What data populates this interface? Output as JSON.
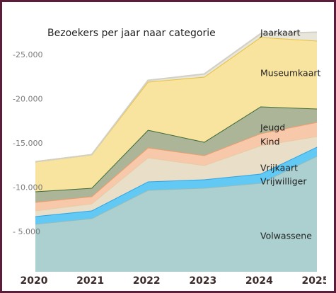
{
  "chart_data": {
    "type": "stacked-area",
    "title": "Bezoekers per jaar naar categorie",
    "categories": [
      "2020",
      "2021",
      "2022",
      "2023",
      "2024",
      "2025"
    ],
    "series": [
      {
        "name": "Volwassene",
        "color": "#acd0d0",
        "line": "#93bcbc",
        "values": [
          5920,
          6560,
          9760,
          10000,
          10560,
          13600
        ]
      },
      {
        "name": "Vrijwilliger",
        "color": "#62c9f4",
        "line": "#2ea4e4",
        "values": [
          880,
          880,
          960,
          960,
          1040,
          1040
        ]
      },
      {
        "name": "Vrijkaart",
        "color": "#e9dec8",
        "line": "#e8cba2",
        "values": [
          640,
          800,
          2720,
          1600,
          3200,
          1200
        ]
      },
      {
        "name": "Kind",
        "color": "#f8c8ab",
        "line": "#ef9d6c",
        "values": [
          960,
          800,
          1120,
          1120,
          1360,
          1600
        ]
      },
      {
        "name": "Jeugd",
        "color": "#acb597",
        "line": "#3f6b37",
        "values": [
          1200,
          960,
          2000,
          1520,
          3040,
          1520
        ]
      },
      {
        "name": "Museumkaart",
        "color": "#f8e49f",
        "line": "#e9c23c",
        "values": [
          3360,
          3760,
          5440,
          7360,
          7840,
          7680
        ]
      },
      {
        "name": "Jaarkaart",
        "color": "#e8e5da",
        "line": "#d3d1c6",
        "values": [
          0,
          0,
          160,
          320,
          400,
          960
        ]
      }
    ],
    "ylim": [
      0,
      30000
    ],
    "yticks": [
      {
        "value": 5000,
        "label": "- 5.000"
      },
      {
        "value": 10000,
        "label": "-10.000"
      },
      {
        "value": 15000,
        "label": "-15.000"
      },
      {
        "value": 20000,
        "label": "-20.000"
      },
      {
        "value": 25000,
        "label": "-25.000"
      }
    ]
  }
}
